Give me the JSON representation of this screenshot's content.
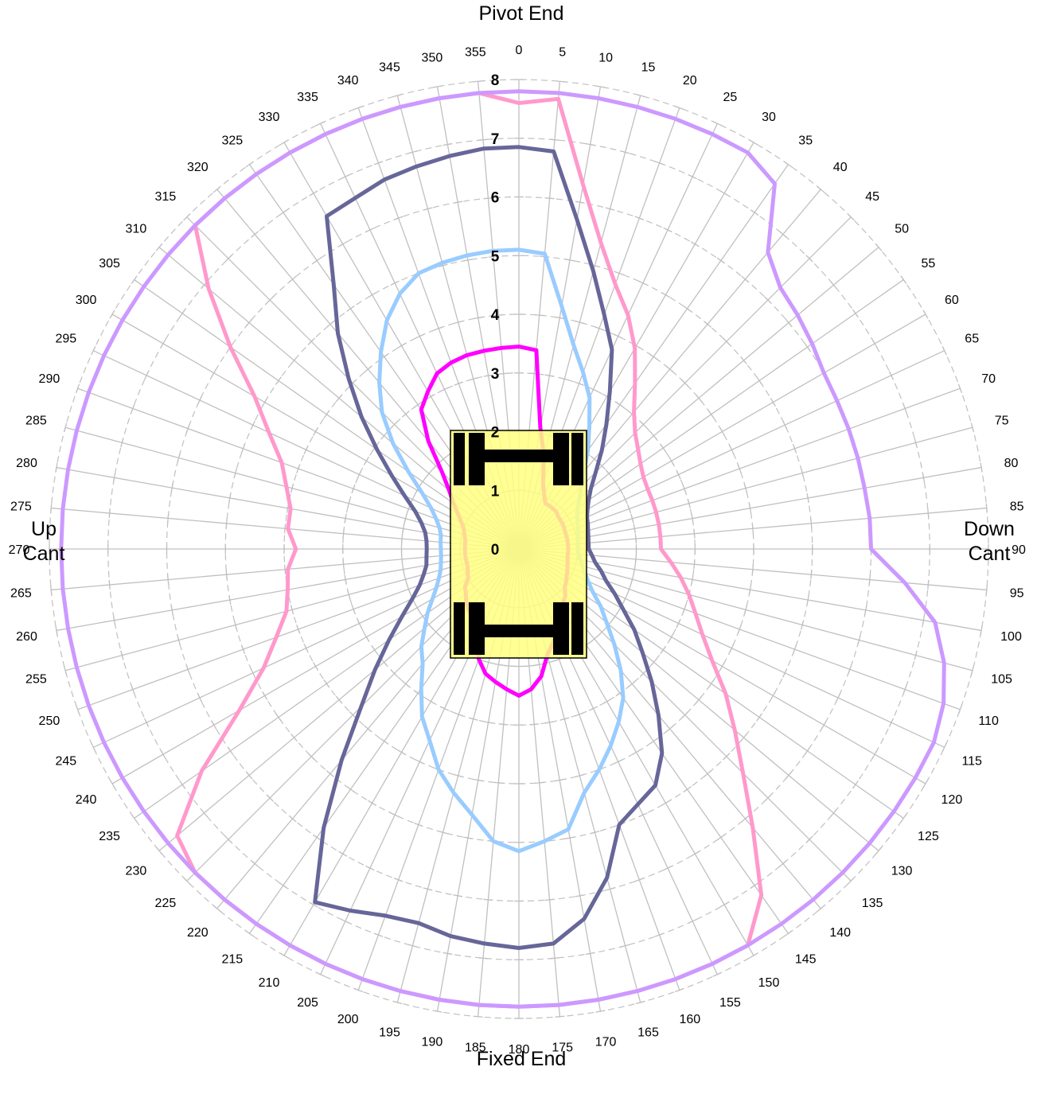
{
  "labels": {
    "top": "Pivot End",
    "bottom": "Fixed End",
    "left_line1": "Up",
    "left_line2": "Cant",
    "right_line1": "Down",
    "right_line2": "Cant"
  },
  "chart_data": {
    "type": "radar",
    "angle_ticks": [
      0,
      5,
      10,
      15,
      20,
      25,
      30,
      35,
      40,
      45,
      50,
      55,
      60,
      65,
      70,
      75,
      80,
      85,
      90,
      95,
      100,
      105,
      110,
      115,
      120,
      125,
      130,
      135,
      140,
      145,
      150,
      155,
      160,
      165,
      170,
      175,
      180,
      185,
      190,
      195,
      200,
      205,
      210,
      215,
      220,
      225,
      230,
      235,
      240,
      245,
      250,
      255,
      260,
      265,
      270,
      275,
      280,
      285,
      290,
      295,
      300,
      305,
      310,
      315,
      320,
      325,
      330,
      335,
      340,
      345,
      350,
      355
    ],
    "radial_ticks": [
      "0",
      "1",
      "2",
      "3",
      "4",
      "5",
      "6",
      "7",
      "8"
    ],
    "rlim": [
      0,
      8
    ],
    "grid": true,
    "colors": {
      "spokes": "#c0c0c0",
      "rings": "#c0c0c0",
      "machine_fill": "#ffff80",
      "machine_stroke": "#000000",
      "machine_bars": "#000000"
    },
    "series": [
      {
        "color": "#ff00ff",
        "values": [
          3.45,
          3.4,
          2.1,
          1.65,
          1.2,
          1.02,
          0.9,
          0.9,
          0.9,
          0.9,
          0.87,
          0.86,
          0.86,
          0.85,
          0.84,
          0.84,
          0.84,
          0.84,
          0.84,
          0.84,
          0.84,
          0.86,
          0.88,
          0.91,
          0.94,
          0.98,
          1.02,
          1.12,
          1.18,
          1.28,
          1.38,
          1.52,
          1.7,
          1.87,
          2.2,
          2.4,
          2.5,
          2.4,
          2.3,
          2.2,
          2.0,
          1.7,
          1.6,
          1.4,
          1.34,
          1.27,
          1.18,
          1.12,
          1.0,
          0.96,
          0.93,
          0.92,
          0.92,
          0.92,
          0.92,
          0.92,
          0.93,
          0.96,
          1.0,
          1.08,
          1.2,
          1.36,
          1.55,
          1.85,
          2.4,
          2.9,
          3.1,
          3.3,
          3.38,
          3.42,
          3.43,
          3.44
        ]
      },
      {
        "color": "#99ccff",
        "values": [
          5.1,
          5.05,
          4.2,
          3.6,
          3.2,
          2.85,
          2.4,
          2.05,
          1.72,
          1.5,
          1.35,
          1.22,
          1.15,
          1.1,
          1.07,
          1.04,
          1.02,
          1.01,
          1.0,
          1.02,
          1.06,
          1.12,
          1.2,
          1.3,
          1.45,
          1.7,
          1.95,
          2.3,
          2.7,
          3.1,
          3.4,
          3.7,
          4.0,
          4.3,
          4.85,
          5.0,
          5.15,
          5.0,
          4.6,
          4.3,
          4.0,
          3.6,
          3.3,
          2.9,
          2.55,
          2.35,
          2.1,
          1.9,
          1.7,
          1.55,
          1.45,
          1.38,
          1.35,
          1.33,
          1.33,
          1.34,
          1.35,
          1.4,
          1.5,
          1.65,
          1.9,
          2.3,
          2.8,
          3.3,
          3.7,
          4.1,
          4.5,
          4.8,
          5.0,
          5.05,
          5.08,
          5.1
        ]
      },
      {
        "color": "#666699",
        "values": [
          6.85,
          6.8,
          5.7,
          4.9,
          4.25,
          3.75,
          3.1,
          2.6,
          2.2,
          1.85,
          1.6,
          1.45,
          1.35,
          1.28,
          1.25,
          1.22,
          1.2,
          1.19,
          1.19,
          1.25,
          1.32,
          1.45,
          1.58,
          1.8,
          2.05,
          2.4,
          2.75,
          3.2,
          3.7,
          4.25,
          4.65,
          4.8,
          5.0,
          5.8,
          6.4,
          6.75,
          6.8,
          6.75,
          6.7,
          6.6,
          6.65,
          6.8,
          6.95,
          5.8,
          4.7,
          3.8,
          3.2,
          2.7,
          2.3,
          2.0,
          1.8,
          1.68,
          1.6,
          1.58,
          1.57,
          1.58,
          1.62,
          1.72,
          1.88,
          2.15,
          2.5,
          2.95,
          3.5,
          4.1,
          4.8,
          5.5,
          6.55,
          6.6,
          6.7,
          6.75,
          6.8,
          6.85
        ]
      },
      {
        "color": "#ff99cc",
        "values": [
          7.6,
          7.7,
          6.3,
          5.4,
          4.8,
          4.4,
          3.95,
          3.45,
          3.05,
          2.8,
          2.65,
          2.53,
          2.45,
          2.42,
          2.42,
          2.42,
          2.42,
          2.42,
          2.42,
          2.6,
          2.8,
          3.0,
          3.2,
          3.45,
          3.8,
          4.3,
          4.8,
          5.4,
          6.2,
          7.2,
          7.8,
          7.8,
          7.8,
          7.8,
          7.8,
          7.8,
          7.8,
          7.8,
          7.8,
          7.8,
          7.8,
          7.8,
          7.8,
          7.8,
          7.8,
          7.8,
          7.6,
          6.6,
          5.5,
          4.8,
          4.4,
          4.1,
          4.0,
          3.95,
          3.8,
          3.95,
          3.95,
          4.1,
          4.3,
          4.7,
          5.2,
          6.0,
          6.9,
          7.8,
          7.8,
          7.8,
          7.8,
          7.8,
          7.8,
          7.8,
          7.8,
          7.8
        ]
      },
      {
        "color": "#cc99ff",
        "values": [
          7.8,
          7.8,
          7.8,
          7.8,
          7.8,
          7.8,
          7.8,
          7.6,
          6.6,
          6.3,
          6.2,
          6.1,
          6.0,
          5.98,
          5.98,
          5.98,
          5.98,
          6.0,
          6.0,
          6.6,
          7.2,
          7.5,
          7.7,
          7.8,
          7.8,
          7.8,
          7.8,
          7.8,
          7.8,
          7.8,
          7.8,
          7.8,
          7.8,
          7.8,
          7.8,
          7.8,
          7.8,
          7.8,
          7.8,
          7.8,
          7.8,
          7.8,
          7.8,
          7.8,
          7.8,
          7.8,
          7.8,
          7.8,
          7.8,
          7.8,
          7.8,
          7.8,
          7.8,
          7.8,
          7.8,
          7.8,
          7.8,
          7.8,
          7.8,
          7.8,
          7.8,
          7.8,
          7.8,
          7.8,
          7.8,
          7.8,
          7.8,
          7.8,
          7.8,
          7.8,
          7.8,
          7.8
        ]
      }
    ]
  }
}
